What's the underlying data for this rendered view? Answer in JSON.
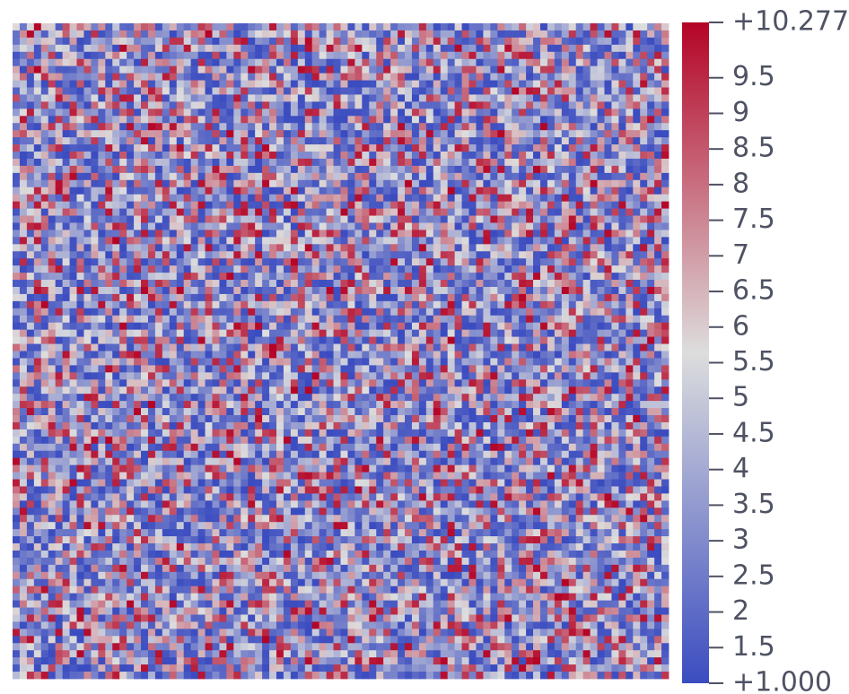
{
  "colorbar": {
    "range": [
      1,
      10.277
    ],
    "colormap": [
      "#3b4cc0",
      "#dddddd",
      "#b40426"
    ],
    "ticks": [
      {
        "value": 1,
        "label": "+1.000"
      },
      1.5,
      2,
      2.5,
      3,
      3.5,
      4,
      4.5,
      5,
      5.5,
      6,
      6.5,
      7,
      7.5,
      8,
      8.5,
      9,
      9.5,
      {
        "value": 10.277,
        "label": "+10.277"
      }
    ]
  }
}
